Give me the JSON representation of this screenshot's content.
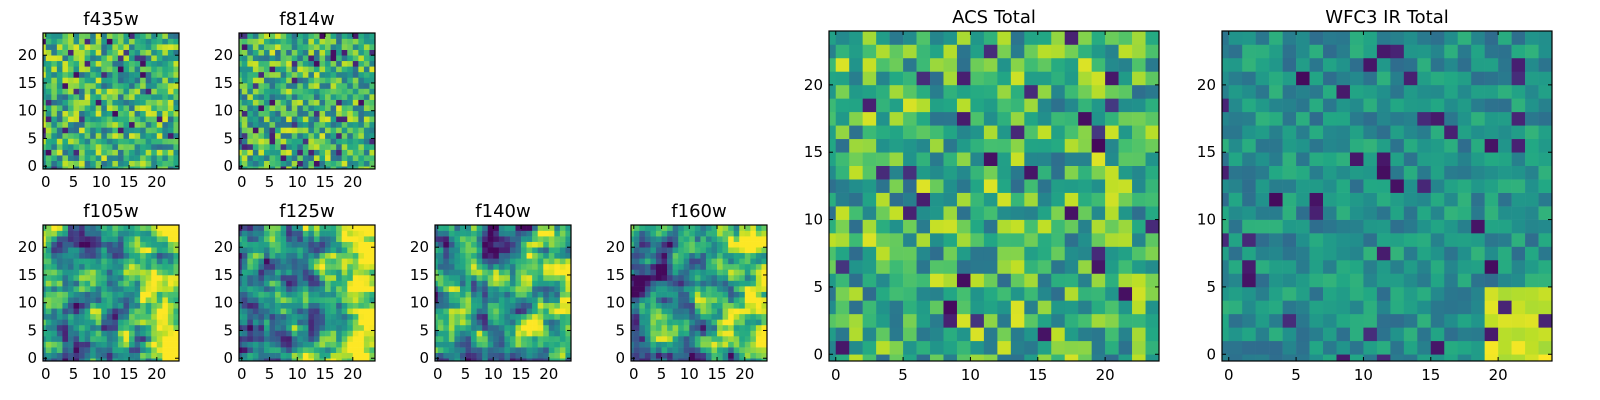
{
  "figure": {
    "background": "#ffffff",
    "colormap": "viridis",
    "grid": false
  },
  "chart_data": [
    {
      "type": "heatmap",
      "title": "f435w",
      "xticks": [
        "0",
        "5",
        "10",
        "15",
        "20"
      ],
      "yticks": [
        "0",
        "5",
        "10",
        "15",
        "20"
      ],
      "xlim": [
        0,
        24
      ],
      "ylim": [
        0,
        24
      ],
      "grid_size": 25,
      "seed": 11,
      "smooth": 0,
      "bias": "light",
      "description_values": "pixel intensities (normalized, viridis)"
    },
    {
      "type": "heatmap",
      "title": "f814w",
      "xticks": [
        "0",
        "5",
        "10",
        "15",
        "20"
      ],
      "yticks": [
        "0",
        "5",
        "10",
        "15",
        "20"
      ],
      "xlim": [
        0,
        24
      ],
      "ylim": [
        0,
        24
      ],
      "grid_size": 25,
      "seed": 23,
      "smooth": 0,
      "bias": "light"
    },
    {
      "type": "heatmap",
      "title": "f105w",
      "xticks": [
        "0",
        "5",
        "10",
        "15",
        "20"
      ],
      "yticks": [
        "0",
        "5",
        "10",
        "15",
        "20"
      ],
      "xlim": [
        0,
        24
      ],
      "ylim": [
        0,
        24
      ],
      "grid_size": 25,
      "seed": 37,
      "smooth": 1,
      "bias": "gradient-right"
    },
    {
      "type": "heatmap",
      "title": "f125w",
      "xticks": [
        "0",
        "5",
        "10",
        "15",
        "20"
      ],
      "yticks": [
        "0",
        "5",
        "10",
        "15",
        "20"
      ],
      "xlim": [
        0,
        24
      ],
      "ylim": [
        0,
        24
      ],
      "grid_size": 25,
      "seed": 41,
      "smooth": 1,
      "bias": "gradient-right"
    },
    {
      "type": "heatmap",
      "title": "f140w",
      "xticks": [
        "0",
        "5",
        "10",
        "15",
        "20"
      ],
      "yticks": [
        "0",
        "5",
        "10",
        "15",
        "20"
      ],
      "xlim": [
        0,
        24
      ],
      "ylim": [
        0,
        24
      ],
      "grid_size": 25,
      "seed": 53,
      "smooth": 1,
      "bias": "gradient-right"
    },
    {
      "type": "heatmap",
      "title": "f160w",
      "xticks": [
        "0",
        "5",
        "10",
        "15",
        "20"
      ],
      "yticks": [
        "0",
        "5",
        "10",
        "15",
        "20"
      ],
      "xlim": [
        0,
        24
      ],
      "ylim": [
        0,
        24
      ],
      "grid_size": 25,
      "seed": 67,
      "smooth": 1,
      "bias": "gradient-right"
    },
    {
      "type": "heatmap",
      "title": "ACS Total",
      "xticks": [
        "0",
        "5",
        "10",
        "15",
        "20"
      ],
      "yticks": [
        "0",
        "5",
        "10",
        "15",
        "20"
      ],
      "xlim": [
        0,
        24
      ],
      "ylim": [
        0,
        24
      ],
      "grid_size": 25,
      "seed": 79,
      "smooth": 0,
      "bias": "light"
    },
    {
      "type": "heatmap",
      "title": "WFC3 IR Total",
      "xticks": [
        "0",
        "5",
        "10",
        "15",
        "20"
      ],
      "yticks": [
        "0",
        "5",
        "10",
        "15",
        "20"
      ],
      "xlim": [
        0,
        24
      ],
      "ylim": [
        0,
        24
      ],
      "grid_size": 25,
      "seed": 97,
      "smooth": 0,
      "bias": "ir"
    }
  ]
}
